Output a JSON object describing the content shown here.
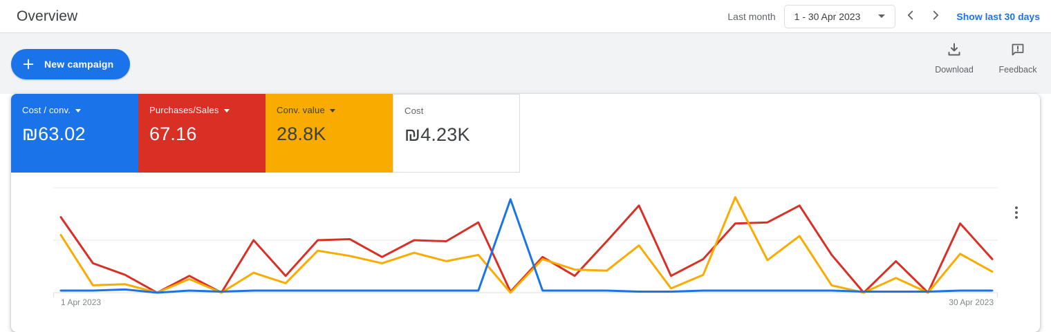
{
  "topbar": {
    "title": "Overview",
    "range_label": "Last month",
    "range_value": "1 - 30 Apr 2023",
    "show_link": "Show last 30 days"
  },
  "toolbar": {
    "new_campaign": "New campaign",
    "download": "Download",
    "feedback": "Feedback"
  },
  "scorecards": [
    {
      "label": "Cost / conv.",
      "value": "₪63.02",
      "bg": "#1a73e8",
      "fg": "#ffffff",
      "caret": true
    },
    {
      "label": "Purchases/Sales",
      "value": "67.16",
      "bg": "#d93025",
      "fg": "#ffffff",
      "caret": true
    },
    {
      "label": "Conv. value",
      "value": "28.8K",
      "bg": "#f9ab00",
      "fg": "#3c4043",
      "caret": true
    },
    {
      "label": "Cost",
      "value": "₪4.23K",
      "bg": "#ffffff",
      "fg": "#3c4043",
      "caret": false,
      "label_color": "#5f6368",
      "border": "#dadce0"
    }
  ],
  "chart_data": {
    "type": "line",
    "x_start_label": "1 Apr 2023",
    "x_end_label": "30 Apr 2023",
    "x": [
      1,
      2,
      3,
      4,
      5,
      6,
      7,
      8,
      9,
      10,
      11,
      12,
      13,
      14,
      15,
      16,
      17,
      18,
      19,
      20,
      21,
      22,
      23,
      24,
      25,
      26,
      27,
      28,
      29,
      30
    ],
    "ylim": [
      0,
      100
    ],
    "y_gridlines": [
      0,
      50,
      100
    ],
    "scale_note": "percent of top gridline, each series normalized independently",
    "series": [
      {
        "name": "Cost / conv.",
        "color": "#1a73e8",
        "values": [
          2,
          2,
          3,
          0,
          2,
          1,
          2,
          2,
          2,
          2,
          2,
          2,
          2,
          2,
          89,
          2,
          2,
          2,
          1,
          1,
          2,
          2,
          2,
          2,
          2,
          1,
          1,
          1,
          2,
          2
        ]
      },
      {
        "name": "Purchases/Sales",
        "color": "#d93025",
        "values": [
          72,
          28,
          17,
          0,
          16,
          0,
          50,
          16,
          50,
          51,
          34,
          50,
          49,
          67,
          1,
          34,
          16,
          49,
          83,
          16,
          32,
          66,
          67,
          83,
          36,
          0,
          30,
          0,
          66,
          32
        ]
      },
      {
        "name": "Conv. value",
        "color": "#f9ab00",
        "values": [
          55,
          7,
          8,
          0,
          13,
          0,
          19,
          9,
          40,
          35,
          28,
          38,
          30,
          36,
          0,
          32,
          22,
          21,
          45,
          4,
          17,
          91,
          31,
          54,
          7,
          0,
          14,
          0,
          37,
          20
        ]
      }
    ],
    "grid_color": "#e8eaed",
    "axis_color": "#dadce0",
    "label_color": "#80868b"
  }
}
